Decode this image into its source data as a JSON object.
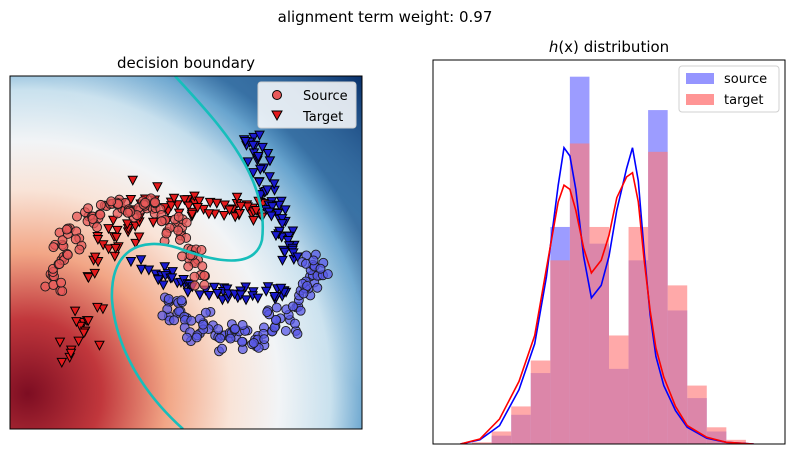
{
  "figure": {
    "suptitle": "alignment term weight: 0.97"
  },
  "chart_data": [
    {
      "type": "scatter",
      "title": "decision boundary",
      "xlabel": "",
      "ylabel": "",
      "ticks": "none",
      "background": "heatmap (RdBu colormap) of classifier output",
      "xlim": [
        -1.5,
        2.5
      ],
      "ylim": [
        -1.5,
        2.5
      ],
      "legend_placement": "upper right",
      "series": [
        {
          "name": "Source",
          "marker": "circle",
          "color": "#e41a1c",
          "points": [
            [
              -1.02,
              0.19
            ],
            [
              -0.97,
              0.35
            ],
            [
              -0.93,
              0.51
            ],
            [
              -0.86,
              0.65
            ],
            [
              -0.78,
              0.77
            ],
            [
              -0.68,
              0.88
            ],
            [
              -0.57,
              0.95
            ],
            [
              -0.45,
              1.0
            ],
            [
              -0.33,
              1.02
            ],
            [
              -0.2,
              1.03
            ],
            [
              -0.07,
              1.02
            ],
            [
              0.06,
              0.99
            ],
            [
              0.18,
              0.94
            ],
            [
              0.29,
              0.87
            ],
            [
              0.39,
              0.79
            ],
            [
              0.48,
              0.69
            ],
            [
              0.55,
              0.57
            ],
            [
              0.6,
              0.45
            ],
            [
              0.64,
              0.31
            ],
            [
              0.66,
              0.18
            ],
            [
              -0.88,
              0.42
            ],
            [
              -0.5,
              0.85
            ],
            [
              -0.1,
              0.9
            ],
            [
              0.3,
              0.7
            ],
            [
              0.5,
              0.4
            ],
            [
              -0.7,
              0.6
            ],
            [
              0.1,
              1.1
            ],
            [
              -0.3,
              1.12
            ],
            [
              0.45,
              0.85
            ],
            [
              -0.95,
              0.1
            ]
          ]
        },
        {
          "name": "Source",
          "marker": "circle",
          "color": "#1f1fd6",
          "points": [
            [
              0.25,
              -0.06
            ],
            [
              0.37,
              -0.18
            ],
            [
              0.49,
              -0.28
            ],
            [
              0.62,
              -0.35
            ],
            [
              0.76,
              -0.4
            ],
            [
              0.9,
              -0.44
            ],
            [
              1.04,
              -0.45
            ],
            [
              1.18,
              -0.44
            ],
            [
              1.32,
              -0.41
            ],
            [
              1.45,
              -0.36
            ],
            [
              1.57,
              -0.29
            ],
            [
              1.68,
              -0.2
            ],
            [
              1.78,
              -0.09
            ],
            [
              1.86,
              0.03
            ],
            [
              1.92,
              0.16
            ],
            [
              1.96,
              0.29
            ],
            [
              2.0,
              0.4
            ],
            [
              0.4,
              0.0
            ],
            [
              0.7,
              -0.25
            ],
            [
              1.1,
              -0.3
            ],
            [
              1.5,
              -0.2
            ],
            [
              1.8,
              0.1
            ],
            [
              0.55,
              -0.45
            ],
            [
              0.95,
              -0.55
            ],
            [
              1.35,
              -0.52
            ],
            [
              1.7,
              -0.35
            ],
            [
              2.05,
              0.25
            ],
            [
              0.3,
              -0.22
            ],
            [
              1.2,
              -0.58
            ],
            [
              1.9,
              0.42
            ]
          ]
        }
      ],
      "target_series": {
        "name": "Target",
        "marker": "triangle-down",
        "color": "#e41a1c",
        "edge_color": "#000000",
        "fill_split": "red on left branch, blue on right branch"
      },
      "boundary_line": {
        "color": "#17bebb",
        "description": "decision boundary contour"
      }
    },
    {
      "type": "histogram",
      "title_prefix": "h",
      "title_var": "(x)",
      "title_suffix": " distribution",
      "xlabel": "",
      "ylabel": "",
      "ticks": "none",
      "legend_placement": "upper right",
      "bins": [
        -0.35,
        -0.3,
        -0.25,
        -0.2,
        -0.15,
        -0.1,
        -0.05,
        0.0,
        0.05,
        0.1,
        0.15,
        0.2,
        0.25,
        0.3,
        0.35
      ],
      "series": [
        {
          "name": "source",
          "color": "#7b7bff",
          "counts": [
            0.0,
            0.1,
            0.35,
            0.85,
            2.6,
            4.4,
            2.4,
            0.9,
            2.2,
            4.0,
            1.6,
            0.55,
            0.15,
            0.02
          ],
          "kde_color": "#0000ff"
        },
        {
          "name": "target",
          "color": "#ff7b7b",
          "counts": [
            0.02,
            0.15,
            0.45,
            1.0,
            2.2,
            3.6,
            2.6,
            1.3,
            2.6,
            3.5,
            1.9,
            0.7,
            0.2,
            0.05
          ],
          "kde_color": "#ff0000"
        }
      ],
      "kde": {
        "x": [
          -0.38,
          -0.33,
          -0.28,
          -0.23,
          -0.19,
          -0.16,
          -0.13,
          -0.115,
          -0.1,
          -0.085,
          -0.065,
          -0.045,
          -0.02,
          0.0,
          0.02,
          0.045,
          0.06,
          0.075,
          0.09,
          0.105,
          0.12,
          0.14,
          0.17,
          0.2,
          0.25,
          0.3,
          0.37
        ],
        "source": [
          0.0,
          0.05,
          0.22,
          0.65,
          1.2,
          2.0,
          3.1,
          3.55,
          3.45,
          3.05,
          2.25,
          1.75,
          1.9,
          2.25,
          2.8,
          3.3,
          3.55,
          3.15,
          2.3,
          1.55,
          1.05,
          0.7,
          0.4,
          0.2,
          0.07,
          0.02,
          0.0
        ],
        "target": [
          0.0,
          0.06,
          0.3,
          0.75,
          1.3,
          2.1,
          2.9,
          3.1,
          3.05,
          2.8,
          2.35,
          2.05,
          2.2,
          2.5,
          2.95,
          3.2,
          3.25,
          2.9,
          2.2,
          1.6,
          1.15,
          0.8,
          0.45,
          0.22,
          0.08,
          0.02,
          0.0
        ]
      },
      "xlim": [
        -0.45,
        0.45
      ],
      "ylim": [
        0,
        4.6
      ]
    }
  ]
}
